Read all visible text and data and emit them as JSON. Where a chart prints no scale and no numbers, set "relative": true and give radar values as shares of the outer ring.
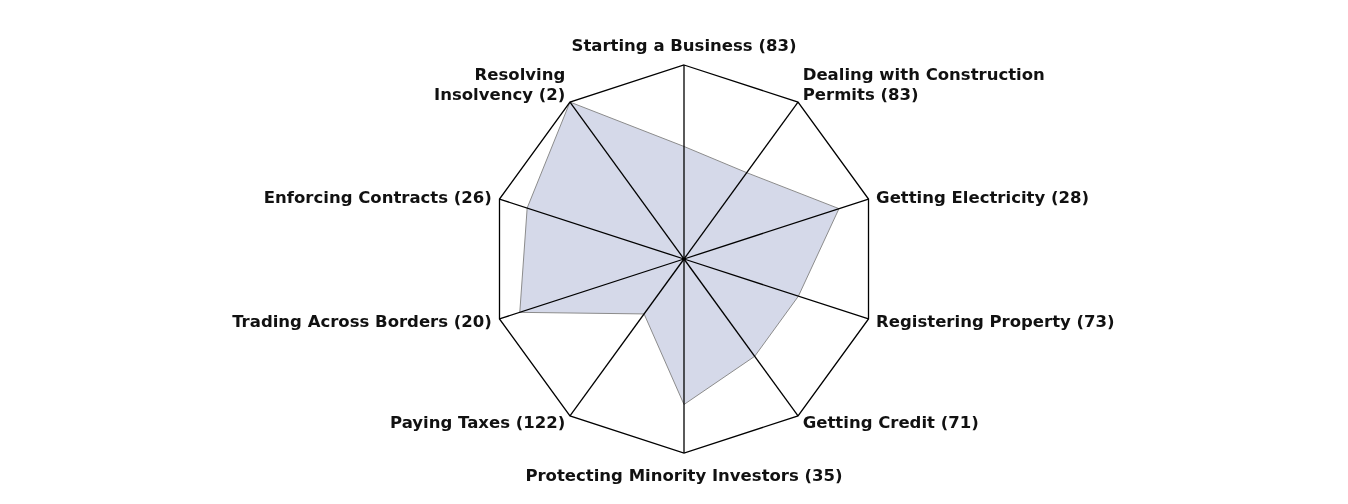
{
  "chart_data": {
    "type": "radar",
    "relative": true,
    "categories": [
      "Starting a Business (83)",
      "Dealing with Construction Permits (83)",
      "Getting Electricity (28)",
      "Registering Property (73)",
      "Getting Credit (71)",
      "Protecting Minority Investors (35)",
      "Paying Taxes (122)",
      "Trading Across Borders (20)",
      "Enforcing Contracts (26)",
      "Resolving Insolvency (2)"
    ],
    "series": [
      {
        "color": "#d5d9e9",
        "values": [
          0.58,
          0.55,
          0.84,
          0.62,
          0.62,
          0.75,
          0.35,
          0.89,
          0.85,
          1
        ]
      }
    ]
  }
}
